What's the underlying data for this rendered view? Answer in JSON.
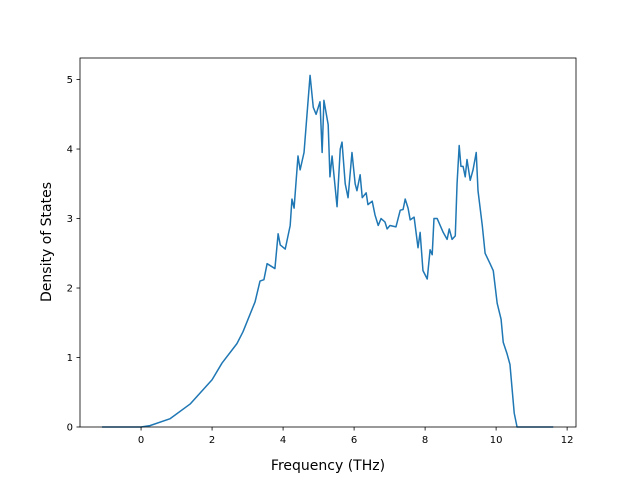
{
  "chart_data": {
    "type": "line",
    "xlabel": "Frequency (THz)",
    "ylabel": "Density of States",
    "x": [
      -1.1,
      0,
      0.25,
      0.82,
      1.38,
      2.0,
      2.28,
      2.7,
      2.87,
      3.21,
      3.35,
      3.46,
      3.55,
      3.77,
      3.86,
      3.92,
      4.06,
      4.2,
      4.25,
      4.31,
      4.42,
      4.48,
      4.59,
      4.76,
      4.85,
      4.93,
      5.04,
      5.1,
      5.15,
      5.27,
      5.32,
      5.38,
      5.52,
      5.61,
      5.66,
      5.75,
      5.83,
      5.94,
      6.03,
      6.08,
      6.17,
      6.23,
      6.34,
      6.39,
      6.51,
      6.59,
      6.68,
      6.76,
      6.87,
      6.93,
      7.01,
      7.18,
      7.3,
      7.38,
      7.44,
      7.52,
      7.58,
      7.69,
      7.8,
      7.86,
      7.94,
      8.06,
      8.14,
      8.2,
      8.25,
      8.34,
      8.51,
      8.62,
      8.68,
      8.76,
      8.85,
      8.9,
      8.96,
      9.01,
      9.07,
      9.13,
      9.18,
      9.27,
      9.35,
      9.44,
      9.49,
      9.61,
      9.69,
      9.83,
      9.92,
      10.03,
      10.14,
      10.2,
      10.31,
      10.39,
      10.51,
      10.59,
      11.61
    ],
    "series": [
      {
        "color": "#1f77b4",
        "values": [
          0,
          0,
          0.02,
          0.12,
          0.33,
          0.68,
          0.92,
          1.2,
          1.37,
          1.8,
          2.1,
          2.12,
          2.35,
          2.28,
          2.78,
          2.62,
          2.56,
          2.9,
          3.28,
          3.15,
          3.9,
          3.7,
          3.95,
          5.06,
          4.6,
          4.5,
          4.68,
          3.95,
          4.7,
          4.35,
          3.6,
          3.9,
          3.17,
          4.0,
          4.1,
          3.5,
          3.3,
          3.95,
          3.5,
          3.4,
          3.63,
          3.3,
          3.37,
          3.2,
          3.25,
          3.05,
          2.9,
          3.0,
          2.95,
          2.85,
          2.9,
          2.88,
          3.12,
          3.13,
          3.28,
          3.15,
          2.98,
          3.02,
          2.58,
          2.8,
          2.25,
          2.13,
          2.55,
          2.48,
          3.0,
          3.0,
          2.8,
          2.7,
          2.85,
          2.7,
          2.75,
          3.5,
          4.05,
          3.75,
          3.75,
          3.6,
          3.85,
          3.55,
          3.7,
          3.95,
          3.4,
          2.9,
          2.5,
          2.35,
          2.25,
          1.78,
          1.55,
          1.22,
          1.05,
          0.9,
          0.2,
          0,
          0
        ]
      }
    ],
    "xlim": [
      -1.72,
      12.25
    ],
    "ylim": [
      0,
      5.31
    ],
    "xticks": [
      0,
      2,
      4,
      6,
      8,
      10,
      12
    ],
    "yticks": [
      0,
      1,
      2,
      3,
      4,
      5
    ]
  }
}
